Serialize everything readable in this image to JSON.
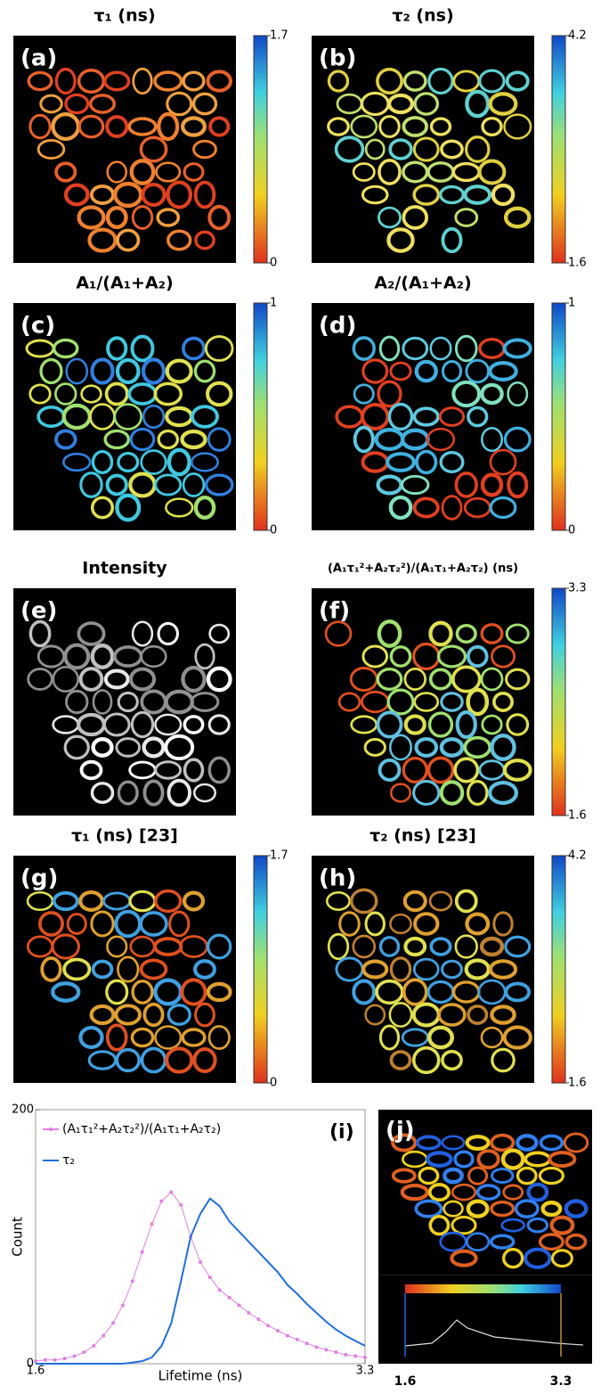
{
  "panels": [
    {
      "label": "(a)",
      "title": "τ₁ (ns)",
      "colorbar_ticks": [
        0,
        1.7
      ]
    },
    {
      "label": "(b)",
      "title": "τ₂ (ns)",
      "colorbar_ticks": [
        1.6,
        4.2
      ]
    },
    {
      "label": "(c)",
      "title": "A₁/(A₁+A₂)",
      "colorbar_ticks": [
        0,
        1
      ]
    },
    {
      "label": "(d)",
      "title": "A₂/(A₁+A₂)",
      "colorbar_ticks": [
        0,
        1
      ]
    },
    {
      "label": "(e)",
      "title": "Intensity"
    },
    {
      "label": "(f)",
      "title": "(A₁τ₁²+A₂τ₂²)/(A₁τ₁+A₂τ₂) (ns)",
      "colorbar_ticks": [
        1.6,
        3.3
      ]
    },
    {
      "label": "(g)",
      "title": "τ₁ (ns) [23]",
      "colorbar_ticks": [
        0,
        1.7
      ]
    },
    {
      "label": "(h)",
      "title": "τ₂ (ns) [23]",
      "colorbar_ticks": [
        1.6,
        4.2
      ]
    },
    {
      "label": "(j)",
      "colorbar_ticks": [
        1.6,
        3.3
      ]
    }
  ],
  "chart_data": {
    "type": "line",
    "annotation": "(i)",
    "x_label": "Lifetime (ns)",
    "y_label": "Count",
    "x": [
      1.6,
      1.65,
      1.7,
      1.75,
      1.8,
      1.85,
      1.9,
      1.95,
      2.0,
      2.05,
      2.1,
      2.15,
      2.2,
      2.25,
      2.3,
      2.35,
      2.4,
      2.45,
      2.5,
      2.55,
      2.6,
      2.65,
      2.7,
      2.75,
      2.8,
      2.85,
      2.9,
      2.95,
      3.0,
      3.05,
      3.1,
      3.15,
      3.2,
      3.25,
      3.3
    ],
    "series": [
      {
        "name": "(A₁τ₁²+A₂τ₂²)/(A₁τ₁+A₂τ₂)",
        "color": "#e080e0",
        "markers": true,
        "values": [
          2,
          3,
          3,
          4,
          6,
          9,
          14,
          22,
          32,
          46,
          65,
          88,
          110,
          128,
          135,
          125,
          100,
          80,
          68,
          58,
          52,
          46,
          40,
          35,
          30,
          26,
          22,
          19,
          16,
          13,
          11,
          9,
          7,
          6,
          5
        ]
      },
      {
        "name": "τ₂",
        "color": "#1f6fe0",
        "markers": false,
        "values": [
          0,
          0,
          0,
          0,
          0,
          0,
          0,
          0,
          0,
          0,
          1,
          2,
          5,
          14,
          32,
          65,
          100,
          118,
          130,
          124,
          112,
          104,
          96,
          88,
          80,
          72,
          62,
          55,
          47,
          40,
          33,
          27,
          22,
          18,
          14
        ]
      }
    ],
    "xlim": [
      1.6,
      3.3
    ],
    "xticks": [
      1.6,
      3.3
    ],
    "ylim": [
      0,
      200
    ],
    "yticks": [
      0,
      200
    ],
    "legend": "upper left"
  }
}
